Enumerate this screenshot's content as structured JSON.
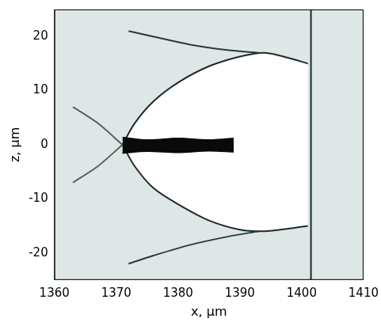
{
  "chart_data": {
    "type": "line",
    "xlabel": "x, μm",
    "ylabel": "z, μm",
    "xlim": [
      1360,
      1410
    ],
    "xticks": [
      1360,
      1370,
      1380,
      1390,
      1400,
      1410
    ],
    "ylim": [
      -25,
      25
    ],
    "yticks": [
      -20,
      -10,
      0,
      10,
      20
    ],
    "grid": false,
    "series": [
      {
        "type": "area",
        "color": "#ffffff",
        "values": [
          [
            1371,
            0
          ],
          [
            1373,
            4
          ],
          [
            1376,
            8
          ],
          [
            1380,
            11.5
          ],
          [
            1385,
            14.5
          ],
          [
            1390,
            16.3
          ],
          [
            1394,
            17
          ],
          [
            1398,
            16
          ],
          [
            1401,
            15
          ]
        ]
      },
      {
        "type": "line",
        "color": "#1c2a2c",
        "values": [
          [
            1371,
            0
          ],
          [
            1373,
            -4
          ],
          [
            1376,
            -8
          ],
          [
            1380,
            -11
          ],
          [
            1385,
            -14
          ],
          [
            1390,
            -15.7
          ],
          [
            1394,
            -16
          ],
          [
            1398,
            -15.5
          ],
          [
            1401,
            -15
          ]
        ]
      },
      {
        "type": "line",
        "color": "#1c2a2c",
        "values": [
          [
            1371,
            0
          ],
          [
            1373,
            4
          ],
          [
            1376,
            8
          ],
          [
            1380,
            11.5
          ],
          [
            1385,
            14.5
          ],
          [
            1390,
            16.3
          ],
          [
            1394,
            17
          ],
          [
            1398,
            16
          ],
          [
            1401,
            15
          ]
        ]
      },
      {
        "type": "area",
        "color": "#0a0a0a",
        "values": [
          [
            1371,
            1.5
          ],
          [
            1375,
            1.0
          ],
          [
            1380,
            1.3
          ],
          [
            1385,
            1.0
          ],
          [
            1389,
            1.3
          ]
        ]
      },
      {
        "type": "line",
        "color": "#0a0a0a",
        "values": [
          [
            1371,
            -1.5
          ],
          [
            1375,
            -1.2
          ],
          [
            1380,
            -1.4
          ],
          [
            1385,
            -1.1
          ],
          [
            1389,
            -1.3
          ]
        ]
      },
      {
        "type": "line",
        "color": "#2a3a3c",
        "values": [
          [
            1393,
            17
          ],
          [
            1388,
            17.5
          ],
          [
            1382,
            18.5
          ],
          [
            1376,
            20
          ],
          [
            1372,
            21
          ]
        ]
      },
      {
        "type": "line",
        "color": "#2a3a3c",
        "values": [
          [
            1393,
            -16
          ],
          [
            1388,
            -17
          ],
          [
            1382,
            -18.5
          ],
          [
            1376,
            -20.5
          ],
          [
            1372,
            -22
          ]
        ]
      },
      {
        "type": "line",
        "color": "#55625f",
        "values": [
          [
            1371,
            0
          ],
          [
            1367,
            4
          ],
          [
            1363,
            7
          ]
        ]
      },
      {
        "type": "line",
        "color": "#55625f",
        "values": [
          [
            1371,
            0
          ],
          [
            1367,
            -4
          ],
          [
            1363,
            -7
          ]
        ]
      },
      {
        "type": "line",
        "color": "#1c2a2c",
        "values": [
          [
            1401.5,
            -25
          ],
          [
            1401.5,
            25
          ]
        ]
      }
    ]
  }
}
